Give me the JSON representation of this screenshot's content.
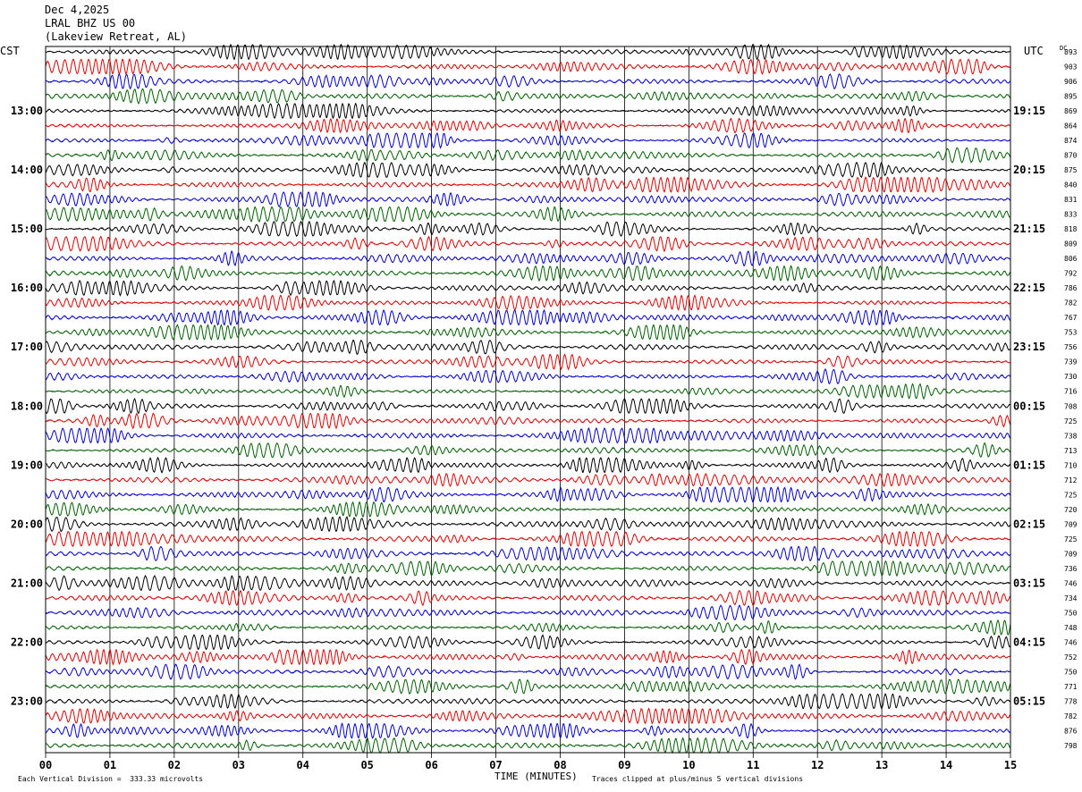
{
  "header": {
    "date": "Dec 4,2025",
    "station": "LRAL BHZ US 00",
    "location": "(Lakeview Retreat, AL)"
  },
  "left_tz": "CST",
  "right_tz": "UTC",
  "dc_label": "DC",
  "footer": {
    "division_note": "Each Vertical Division =  333.33 microvolts",
    "clip_note": "Traces clipped at plus/minus 5 vertical divisions",
    "xlabel": "TIME (MINUTES)"
  },
  "colors": {
    "trace_cycle": [
      "#000000",
      "#e00000",
      "#0000d0",
      "#006000"
    ],
    "grid": "#000000",
    "background": "#ffffff"
  },
  "chart_data": {
    "type": "line",
    "description_kind": "helicorder",
    "x_ticks": [
      "00",
      "01",
      "02",
      "03",
      "04",
      "05",
      "06",
      "07",
      "08",
      "09",
      "10",
      "11",
      "12",
      "13",
      "14",
      "15"
    ],
    "xlim": [
      0,
      15
    ],
    "trace_count": 48,
    "minutes_per_trace": 15,
    "left_hour_labels": [
      {
        "trace": 4,
        "text": "13:00"
      },
      {
        "trace": 8,
        "text": "14:00"
      },
      {
        "trace": 12,
        "text": "15:00"
      },
      {
        "trace": 16,
        "text": "16:00"
      },
      {
        "trace": 20,
        "text": "17:00"
      },
      {
        "trace": 24,
        "text": "18:00"
      },
      {
        "trace": 28,
        "text": "19:00"
      },
      {
        "trace": 32,
        "text": "20:00"
      },
      {
        "trace": 36,
        "text": "21:00"
      },
      {
        "trace": 40,
        "text": "22:00"
      },
      {
        "trace": 44,
        "text": "23:00"
      }
    ],
    "right_hour_labels": [
      {
        "trace": 4,
        "text": "19:15"
      },
      {
        "trace": 8,
        "text": "20:15"
      },
      {
        "trace": 12,
        "text": "21:15"
      },
      {
        "trace": 16,
        "text": "22:15"
      },
      {
        "trace": 20,
        "text": "23:15"
      },
      {
        "trace": 24,
        "text": "00:15"
      },
      {
        "trace": 28,
        "text": "01:15"
      },
      {
        "trace": 32,
        "text": "02:15"
      },
      {
        "trace": 36,
        "text": "03:15"
      },
      {
        "trace": 40,
        "text": "04:15"
      },
      {
        "trace": 44,
        "text": "05:15"
      }
    ],
    "dc_offsets": [
      "893",
      "903",
      "906",
      "895",
      "869",
      "864",
      "874",
      "870",
      "875",
      "840",
      "831",
      "833",
      "818",
      "809",
      "806",
      "792",
      "786",
      "782",
      "767",
      "753",
      "756",
      "739",
      "730",
      "716",
      "708",
      "725",
      "738",
      "713",
      "710",
      "712",
      "725",
      "720",
      "709",
      "725",
      "709",
      "736",
      "746",
      "734",
      "750",
      "748",
      "746",
      "752",
      "750",
      "771",
      "778",
      "782",
      "876",
      "798"
    ]
  }
}
